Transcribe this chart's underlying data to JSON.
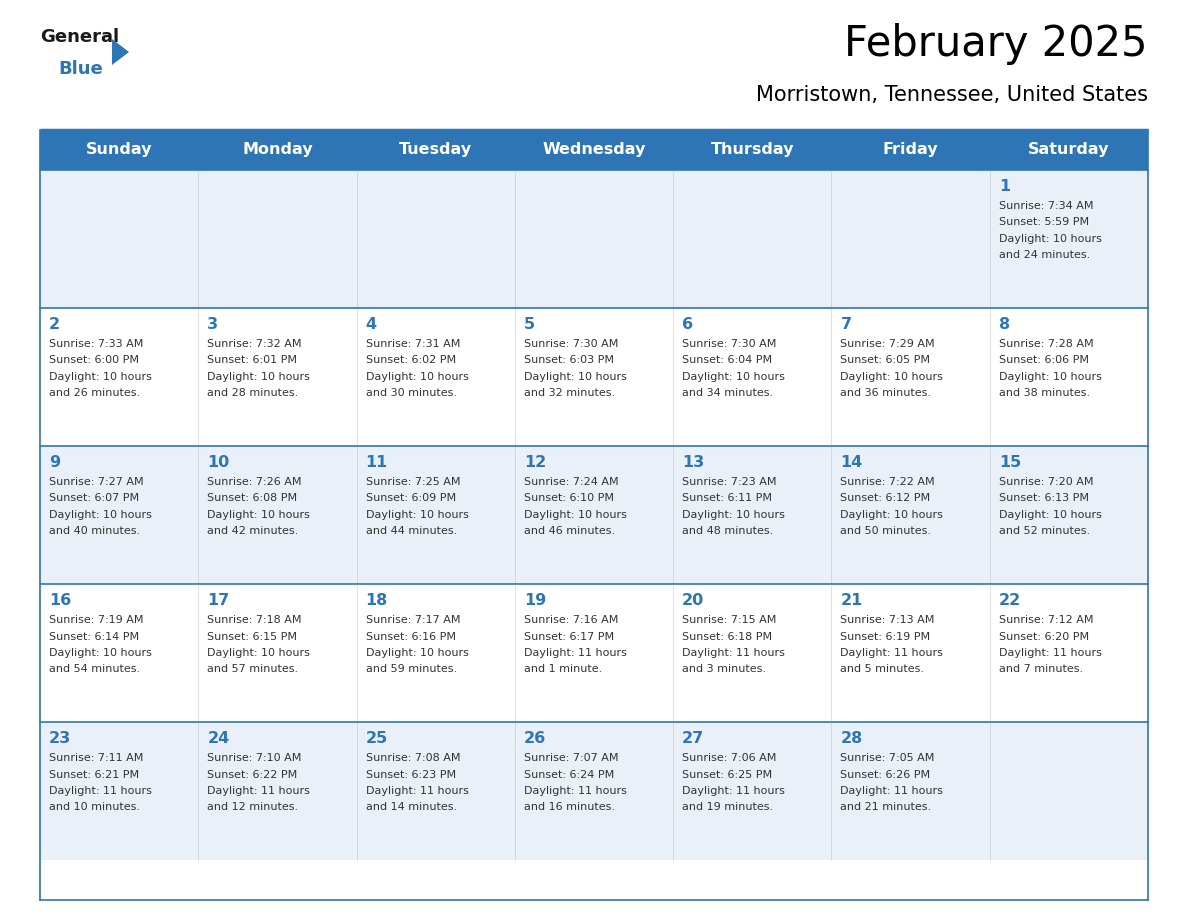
{
  "title": "February 2025",
  "subtitle": "Morristown, Tennessee, United States",
  "header_bg": "#2E75B6",
  "header_text_color": "#FFFFFF",
  "day_names": [
    "Sunday",
    "Monday",
    "Tuesday",
    "Wednesday",
    "Thursday",
    "Friday",
    "Saturday"
  ],
  "row_bg_light": "#EAF0F8",
  "row_bg_white": "#FFFFFF",
  "border_color": "#2E75B6",
  "text_color": "#333333",
  "day_num_color": "#2E75B6",
  "logo_general_color": "#1a1a1a",
  "logo_blue_color": "#2E75B6",
  "weeks": [
    [
      {
        "day": null,
        "lines": []
      },
      {
        "day": null,
        "lines": []
      },
      {
        "day": null,
        "lines": []
      },
      {
        "day": null,
        "lines": []
      },
      {
        "day": null,
        "lines": []
      },
      {
        "day": null,
        "lines": []
      },
      {
        "day": 1,
        "lines": [
          "Sunrise: 7:34 AM",
          "Sunset: 5:59 PM",
          "Daylight: 10 hours",
          "and 24 minutes."
        ]
      }
    ],
    [
      {
        "day": 2,
        "lines": [
          "Sunrise: 7:33 AM",
          "Sunset: 6:00 PM",
          "Daylight: 10 hours",
          "and 26 minutes."
        ]
      },
      {
        "day": 3,
        "lines": [
          "Sunrise: 7:32 AM",
          "Sunset: 6:01 PM",
          "Daylight: 10 hours",
          "and 28 minutes."
        ]
      },
      {
        "day": 4,
        "lines": [
          "Sunrise: 7:31 AM",
          "Sunset: 6:02 PM",
          "Daylight: 10 hours",
          "and 30 minutes."
        ]
      },
      {
        "day": 5,
        "lines": [
          "Sunrise: 7:30 AM",
          "Sunset: 6:03 PM",
          "Daylight: 10 hours",
          "and 32 minutes."
        ]
      },
      {
        "day": 6,
        "lines": [
          "Sunrise: 7:30 AM",
          "Sunset: 6:04 PM",
          "Daylight: 10 hours",
          "and 34 minutes."
        ]
      },
      {
        "day": 7,
        "lines": [
          "Sunrise: 7:29 AM",
          "Sunset: 6:05 PM",
          "Daylight: 10 hours",
          "and 36 minutes."
        ]
      },
      {
        "day": 8,
        "lines": [
          "Sunrise: 7:28 AM",
          "Sunset: 6:06 PM",
          "Daylight: 10 hours",
          "and 38 minutes."
        ]
      }
    ],
    [
      {
        "day": 9,
        "lines": [
          "Sunrise: 7:27 AM",
          "Sunset: 6:07 PM",
          "Daylight: 10 hours",
          "and 40 minutes."
        ]
      },
      {
        "day": 10,
        "lines": [
          "Sunrise: 7:26 AM",
          "Sunset: 6:08 PM",
          "Daylight: 10 hours",
          "and 42 minutes."
        ]
      },
      {
        "day": 11,
        "lines": [
          "Sunrise: 7:25 AM",
          "Sunset: 6:09 PM",
          "Daylight: 10 hours",
          "and 44 minutes."
        ]
      },
      {
        "day": 12,
        "lines": [
          "Sunrise: 7:24 AM",
          "Sunset: 6:10 PM",
          "Daylight: 10 hours",
          "and 46 minutes."
        ]
      },
      {
        "day": 13,
        "lines": [
          "Sunrise: 7:23 AM",
          "Sunset: 6:11 PM",
          "Daylight: 10 hours",
          "and 48 minutes."
        ]
      },
      {
        "day": 14,
        "lines": [
          "Sunrise: 7:22 AM",
          "Sunset: 6:12 PM",
          "Daylight: 10 hours",
          "and 50 minutes."
        ]
      },
      {
        "day": 15,
        "lines": [
          "Sunrise: 7:20 AM",
          "Sunset: 6:13 PM",
          "Daylight: 10 hours",
          "and 52 minutes."
        ]
      }
    ],
    [
      {
        "day": 16,
        "lines": [
          "Sunrise: 7:19 AM",
          "Sunset: 6:14 PM",
          "Daylight: 10 hours",
          "and 54 minutes."
        ]
      },
      {
        "day": 17,
        "lines": [
          "Sunrise: 7:18 AM",
          "Sunset: 6:15 PM",
          "Daylight: 10 hours",
          "and 57 minutes."
        ]
      },
      {
        "day": 18,
        "lines": [
          "Sunrise: 7:17 AM",
          "Sunset: 6:16 PM",
          "Daylight: 10 hours",
          "and 59 minutes."
        ]
      },
      {
        "day": 19,
        "lines": [
          "Sunrise: 7:16 AM",
          "Sunset: 6:17 PM",
          "Daylight: 11 hours",
          "and 1 minute."
        ]
      },
      {
        "day": 20,
        "lines": [
          "Sunrise: 7:15 AM",
          "Sunset: 6:18 PM",
          "Daylight: 11 hours",
          "and 3 minutes."
        ]
      },
      {
        "day": 21,
        "lines": [
          "Sunrise: 7:13 AM",
          "Sunset: 6:19 PM",
          "Daylight: 11 hours",
          "and 5 minutes."
        ]
      },
      {
        "day": 22,
        "lines": [
          "Sunrise: 7:12 AM",
          "Sunset: 6:20 PM",
          "Daylight: 11 hours",
          "and 7 minutes."
        ]
      }
    ],
    [
      {
        "day": 23,
        "lines": [
          "Sunrise: 7:11 AM",
          "Sunset: 6:21 PM",
          "Daylight: 11 hours",
          "and 10 minutes."
        ]
      },
      {
        "day": 24,
        "lines": [
          "Sunrise: 7:10 AM",
          "Sunset: 6:22 PM",
          "Daylight: 11 hours",
          "and 12 minutes."
        ]
      },
      {
        "day": 25,
        "lines": [
          "Sunrise: 7:08 AM",
          "Sunset: 6:23 PM",
          "Daylight: 11 hours",
          "and 14 minutes."
        ]
      },
      {
        "day": 26,
        "lines": [
          "Sunrise: 7:07 AM",
          "Sunset: 6:24 PM",
          "Daylight: 11 hours",
          "and 16 minutes."
        ]
      },
      {
        "day": 27,
        "lines": [
          "Sunrise: 7:06 AM",
          "Sunset: 6:25 PM",
          "Daylight: 11 hours",
          "and 19 minutes."
        ]
      },
      {
        "day": 28,
        "lines": [
          "Sunrise: 7:05 AM",
          "Sunset: 6:26 PM",
          "Daylight: 11 hours",
          "and 21 minutes."
        ]
      },
      {
        "day": null,
        "lines": []
      }
    ]
  ]
}
